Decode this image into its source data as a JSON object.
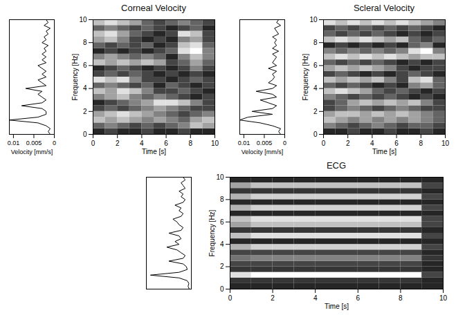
{
  "chart_data": [
    {
      "type": "line",
      "orientation": "horizontal",
      "x": [
        0,
        0.25,
        0.5,
        0.75,
        1,
        1.25,
        1.5,
        1.75,
        2,
        2.25,
        2.5,
        2.75,
        3,
        3.25,
        3.5,
        3.75,
        4,
        4.25,
        4.5,
        4.75,
        5,
        5.25,
        5.5,
        5.75,
        6,
        6.25,
        6.5,
        6.75,
        7,
        7.25,
        7.5,
        7.75,
        8,
        8.25,
        8.5,
        8.75,
        9,
        9.25,
        9.5,
        9.75,
        10
      ],
      "values": [
        0.001,
        0.0015,
        0.001,
        0.002,
        0.004,
        0.011,
        0.004,
        0.002,
        0.002,
        0.003,
        0.008,
        0.003,
        0.002,
        0.003,
        0.004,
        0.003,
        0.007,
        0.002,
        0.003,
        0.004,
        0.002,
        0.003,
        0.002,
        0.003,
        0.004,
        0.002,
        0.003,
        0.002,
        0.003,
        0.002,
        0.0025,
        0.0015,
        0.003,
        0.002,
        0.0025,
        0.0015,
        0.002,
        0.001,
        0.0025,
        0.0015,
        0.002
      ],
      "xlim": [
        0,
        10
      ],
      "ylim": [
        0.011,
        0
      ],
      "yticks": [
        0.01,
        0.005,
        0
      ],
      "ylabel": "Velocity [mm/s]",
      "tick_labels": "y",
      "color": "#000000"
    },
    {
      "type": "heatmap",
      "title": "Corneal Velocity",
      "xlabel": "Time [s]",
      "ylabel": "Frequency [Hz]",
      "xlim": [
        0,
        10
      ],
      "ylim": [
        0,
        10
      ],
      "xticks": [
        0,
        2,
        4,
        6,
        8,
        10
      ],
      "yticks": [
        0,
        2,
        4,
        6,
        8,
        10
      ],
      "xbins": [
        0,
        1,
        2,
        3,
        4,
        5,
        6,
        7,
        8,
        9,
        10
      ],
      "ybins": [
        0,
        0.5,
        1,
        1.5,
        2,
        2.5,
        3,
        3.5,
        4,
        4.5,
        5,
        5.5,
        6,
        6.5,
        7,
        7.5,
        8,
        8.5,
        9,
        9.5,
        10
      ],
      "cells": [
        [
          0.3,
          0.4,
          0.3,
          0.3,
          0.4,
          0.3,
          0.3,
          0.4,
          0.3,
          0.3
        ],
        [
          0.5,
          0.6,
          0.5,
          0.4,
          0.5,
          0.4,
          0.5,
          0.6,
          0.8,
          0.7
        ],
        [
          0.8,
          0.7,
          0.8,
          0.7,
          0.6,
          0.7,
          0.6,
          0.5,
          0.7,
          0.8
        ],
        [
          0.7,
          0.8,
          0.9,
          0.8,
          0.7,
          0.6,
          0.5,
          0.4,
          0.5,
          0.6
        ],
        [
          0.4,
          0.5,
          0.4,
          0.5,
          0.6,
          0.7,
          0.6,
          0.5,
          0.4,
          0.4
        ],
        [
          0.3,
          0.4,
          0.5,
          0.6,
          0.7,
          0.9,
          0.9,
          0.8,
          0.6,
          0.4
        ],
        [
          0.6,
          0.7,
          0.8,
          0.6,
          0.5,
          0.6,
          0.5,
          0.4,
          0.3,
          0.4
        ],
        [
          0.8,
          0.7,
          0.9,
          0.8,
          0.6,
          0.4,
          0.4,
          0.5,
          0.4,
          0.3
        ],
        [
          0.5,
          0.6,
          0.5,
          0.4,
          0.5,
          0.3,
          0.5,
          0.4,
          0.3,
          0.4
        ],
        [
          0.9,
          0.8,
          0.9,
          0.6,
          0.4,
          0.4,
          0.3,
          0.4,
          0.5,
          0.4
        ],
        [
          0.4,
          0.5,
          0.4,
          0.5,
          0.4,
          0.3,
          0.4,
          0.3,
          0.4,
          0.3
        ],
        [
          0.3,
          0.4,
          0.5,
          0.4,
          0.3,
          0.4,
          0.3,
          0.4,
          0.6,
          0.4
        ],
        [
          0.8,
          0.7,
          0.8,
          0.7,
          0.8,
          0.7,
          0.4,
          0.5,
          0.7,
          0.5
        ],
        [
          0.6,
          0.7,
          0.6,
          0.5,
          0.6,
          0.5,
          0.3,
          0.6,
          0.8,
          0.6
        ],
        [
          0.3,
          0.4,
          0.3,
          0.4,
          0.3,
          0.4,
          0.5,
          0.9,
          1.0,
          0.6
        ],
        [
          0.5,
          0.4,
          0.5,
          0.4,
          0.5,
          0.3,
          0.4,
          0.8,
          0.9,
          0.5
        ],
        [
          0.7,
          0.8,
          0.6,
          0.4,
          0.3,
          0.4,
          0.3,
          0.6,
          0.7,
          0.4
        ],
        [
          0.8,
          0.9,
          0.7,
          0.5,
          0.4,
          0.3,
          0.4,
          0.9,
          0.8,
          0.4
        ],
        [
          0.5,
          0.6,
          0.5,
          0.4,
          0.5,
          0.4,
          0.3,
          0.4,
          0.5,
          0.3
        ],
        [
          0.8,
          0.9,
          0.8,
          0.7,
          0.5,
          0.4,
          0.5,
          0.6,
          0.5,
          0.4
        ]
      ]
    },
    {
      "type": "line",
      "orientation": "horizontal",
      "x": [
        0,
        0.25,
        0.5,
        0.75,
        1,
        1.25,
        1.5,
        1.75,
        2,
        2.25,
        2.5,
        2.75,
        3,
        3.25,
        3.5,
        3.75,
        4,
        4.25,
        4.5,
        4.75,
        5,
        5.25,
        5.5,
        5.75,
        6,
        6.25,
        6.5,
        6.75,
        7,
        7.25,
        7.5,
        7.75,
        8,
        8.25,
        8.5,
        8.75,
        9,
        9.25,
        9.5,
        9.75,
        10
      ],
      "values": [
        0.001,
        0.0015,
        0.001,
        0.003,
        0.006,
        0.011,
        0.009,
        0.003,
        0.008,
        0.003,
        0.002,
        0.004,
        0.006,
        0.002,
        0.003,
        0.007,
        0.003,
        0.002,
        0.004,
        0.003,
        0.0025,
        0.003,
        0.002,
        0.004,
        0.002,
        0.003,
        0.0025,
        0.002,
        0.003,
        0.0015,
        0.003,
        0.002,
        0.0025,
        0.002,
        0.003,
        0.0015,
        0.002,
        0.0025,
        0.001,
        0.002,
        0.0015
      ],
      "xlim": [
        0,
        10
      ],
      "ylim": [
        0.011,
        0
      ],
      "yticks": [
        0.01,
        0.005,
        0
      ],
      "ylabel": "Velocity [mm/s]",
      "tick_labels": "y",
      "color": "#000000"
    },
    {
      "type": "heatmap",
      "title": "Scleral Velocity",
      "xlabel": "Time [s]",
      "ylabel": "Frequency [Hz]",
      "xlim": [
        0,
        10
      ],
      "ylim": [
        0,
        10
      ],
      "xticks": [
        0,
        2,
        4,
        6,
        8,
        10
      ],
      "yticks": [
        0,
        2,
        4,
        6,
        8,
        10
      ],
      "xbins": [
        0,
        1,
        2,
        3,
        4,
        5,
        6,
        7,
        8,
        9,
        10
      ],
      "ybins": [
        0,
        0.5,
        1,
        1.5,
        2,
        2.5,
        3,
        3.5,
        4,
        4.5,
        5,
        5.5,
        6,
        6.5,
        7,
        7.5,
        8,
        8.5,
        9,
        9.5,
        10
      ],
      "cells": [
        [
          0.3,
          0.3,
          0.4,
          0.3,
          0.3,
          0.4,
          0.3,
          0.3,
          0.4,
          0.3
        ],
        [
          0.6,
          0.5,
          0.4,
          0.5,
          0.6,
          0.5,
          0.4,
          0.5,
          0.5,
          0.4
        ],
        [
          0.8,
          0.7,
          0.6,
          0.7,
          0.6,
          0.7,
          0.6,
          0.7,
          0.6,
          0.5
        ],
        [
          0.7,
          0.8,
          0.8,
          0.7,
          0.8,
          0.7,
          0.8,
          0.7,
          0.6,
          0.5
        ],
        [
          0.4,
          0.5,
          0.6,
          0.5,
          0.4,
          0.5,
          0.6,
          0.5,
          0.4,
          0.4
        ],
        [
          0.4,
          0.5,
          0.7,
          0.8,
          0.7,
          0.8,
          0.7,
          0.8,
          0.6,
          0.4
        ],
        [
          0.6,
          0.5,
          0.4,
          0.5,
          0.4,
          0.5,
          0.4,
          0.3,
          0.4,
          0.3
        ],
        [
          0.8,
          0.9,
          0.8,
          0.7,
          0.5,
          0.4,
          0.5,
          0.4,
          0.3,
          0.4
        ],
        [
          0.5,
          0.4,
          0.5,
          0.4,
          0.3,
          0.4,
          0.3,
          0.6,
          0.7,
          0.5
        ],
        [
          0.8,
          0.7,
          0.8,
          0.7,
          0.8,
          0.6,
          0.4,
          0.8,
          0.9,
          0.5
        ],
        [
          0.4,
          0.5,
          0.4,
          0.3,
          0.4,
          0.3,
          0.4,
          0.5,
          0.4,
          0.3
        ],
        [
          0.7,
          0.8,
          0.7,
          0.8,
          0.7,
          0.6,
          0.4,
          0.3,
          0.4,
          0.4
        ],
        [
          0.5,
          0.4,
          0.5,
          0.4,
          0.5,
          0.4,
          0.3,
          0.4,
          0.3,
          0.4
        ],
        [
          0.8,
          0.9,
          0.8,
          0.9,
          0.8,
          0.9,
          0.8,
          0.7,
          0.8,
          0.8
        ],
        [
          0.6,
          0.5,
          0.6,
          0.5,
          0.6,
          0.5,
          0.6,
          0.9,
          1.0,
          0.6
        ],
        [
          0.3,
          0.4,
          0.3,
          0.4,
          0.3,
          0.4,
          0.3,
          0.5,
          0.6,
          0.3
        ],
        [
          0.8,
          0.9,
          0.8,
          0.9,
          0.8,
          0.7,
          0.8,
          0.5,
          0.4,
          0.5
        ],
        [
          0.5,
          0.4,
          0.5,
          0.4,
          0.5,
          0.4,
          0.3,
          0.4,
          0.3,
          0.4
        ],
        [
          0.4,
          0.5,
          0.4,
          0.5,
          0.4,
          0.5,
          0.4,
          0.5,
          0.4,
          0.3
        ],
        [
          0.9,
          0.8,
          0.9,
          0.8,
          0.9,
          0.8,
          0.9,
          0.8,
          0.7,
          0.6
        ]
      ]
    },
    {
      "type": "line",
      "orientation": "horizontal",
      "x": [
        0,
        0.25,
        0.5,
        0.75,
        1,
        1.25,
        1.5,
        1.75,
        2,
        2.25,
        2.5,
        2.75,
        3,
        3.25,
        3.5,
        3.75,
        4,
        4.25,
        4.5,
        4.75,
        5,
        5.25,
        5.5,
        5.75,
        6,
        6.25,
        6.5,
        6.75,
        7,
        7.25,
        7.5,
        7.75,
        8,
        8.25,
        8.5,
        8.75,
        9,
        9.25,
        9.5,
        9.75,
        10
      ],
      "values": [
        0.05,
        0.08,
        0.06,
        0.1,
        0.3,
        1.0,
        0.3,
        0.1,
        0.12,
        0.2,
        0.55,
        0.2,
        0.15,
        0.25,
        0.35,
        0.6,
        0.3,
        0.4,
        0.25,
        0.3,
        0.55,
        0.25,
        0.2,
        0.3,
        0.35,
        0.45,
        0.25,
        0.2,
        0.3,
        0.25,
        0.4,
        0.2,
        0.15,
        0.25,
        0.2,
        0.3,
        0.15,
        0.2,
        0.25,
        0.15,
        0.2
      ],
      "xlim": [
        0,
        10
      ],
      "ylim": [
        1.1,
        0
      ],
      "tick_labels": false,
      "color": "#000000"
    },
    {
      "type": "heatmap",
      "title": "ECG",
      "xlabel": "Time [s]",
      "ylabel": "Frequency [Hz]",
      "xlim": [
        0,
        10
      ],
      "ylim": [
        0,
        10
      ],
      "xticks": [
        0,
        2,
        4,
        6,
        8,
        10
      ],
      "yticks": [
        0,
        2,
        4,
        6,
        8,
        10
      ],
      "xbins": [
        0,
        1,
        2,
        3,
        4,
        5,
        6,
        7,
        8,
        9,
        10
      ],
      "ybins": [
        0,
        0.5,
        1,
        1.5,
        2,
        2.5,
        3,
        3.5,
        4,
        4.5,
        5,
        5.5,
        6,
        6.5,
        7,
        7.5,
        8,
        8.5,
        9,
        9.5,
        10
      ],
      "cells": [
        [
          0.3,
          0.3,
          0.3,
          0.3,
          0.3,
          0.3,
          0.3,
          0.3,
          0.3,
          0.3
        ],
        [
          0.35,
          0.35,
          0.35,
          0.35,
          0.35,
          0.35,
          0.35,
          0.35,
          0.35,
          0.3
        ],
        [
          0.9,
          1.0,
          1.0,
          1.0,
          1.0,
          1.0,
          1.0,
          1.0,
          1.0,
          0.4
        ],
        [
          0.35,
          0.35,
          0.35,
          0.35,
          0.35,
          0.35,
          0.35,
          0.35,
          0.35,
          0.3
        ],
        [
          0.4,
          0.4,
          0.4,
          0.4,
          0.4,
          0.4,
          0.4,
          0.4,
          0.4,
          0.3
        ],
        [
          0.55,
          0.6,
          0.6,
          0.6,
          0.6,
          0.6,
          0.6,
          0.6,
          0.6,
          0.35
        ],
        [
          0.4,
          0.4,
          0.4,
          0.4,
          0.4,
          0.4,
          0.4,
          0.4,
          0.4,
          0.3
        ],
        [
          0.75,
          0.85,
          0.85,
          0.85,
          0.85,
          0.85,
          0.85,
          0.85,
          0.85,
          0.4
        ],
        [
          0.3,
          0.3,
          0.3,
          0.3,
          0.3,
          0.3,
          0.3,
          0.3,
          0.3,
          0.3
        ],
        [
          0.8,
          0.9,
          0.9,
          0.9,
          0.9,
          0.9,
          0.9,
          0.9,
          0.9,
          0.4
        ],
        [
          0.35,
          0.35,
          0.35,
          0.35,
          0.35,
          0.35,
          0.35,
          0.35,
          0.35,
          0.3
        ],
        [
          0.7,
          0.8,
          0.8,
          0.8,
          0.8,
          0.8,
          0.8,
          0.8,
          0.8,
          0.4
        ],
        [
          0.8,
          0.9,
          0.9,
          0.9,
          0.9,
          0.9,
          0.9,
          0.9,
          0.9,
          0.4
        ],
        [
          0.3,
          0.3,
          0.3,
          0.3,
          0.3,
          0.3,
          0.3,
          0.3,
          0.3,
          0.3
        ],
        [
          0.75,
          0.85,
          0.85,
          0.85,
          0.85,
          0.85,
          0.85,
          0.85,
          0.85,
          0.4
        ],
        [
          0.3,
          0.3,
          0.3,
          0.3,
          0.3,
          0.3,
          0.3,
          0.3,
          0.3,
          0.3
        ],
        [
          0.75,
          0.85,
          0.85,
          0.85,
          0.85,
          0.85,
          0.85,
          0.85,
          0.85,
          0.4
        ],
        [
          0.35,
          0.35,
          0.35,
          0.35,
          0.35,
          0.35,
          0.35,
          0.35,
          0.35,
          0.3
        ],
        [
          0.7,
          0.8,
          0.8,
          0.8,
          0.8,
          0.8,
          0.8,
          0.8,
          0.8,
          0.4
        ],
        [
          0.3,
          0.3,
          0.3,
          0.3,
          0.3,
          0.3,
          0.3,
          0.3,
          0.3,
          0.3
        ]
      ]
    }
  ]
}
